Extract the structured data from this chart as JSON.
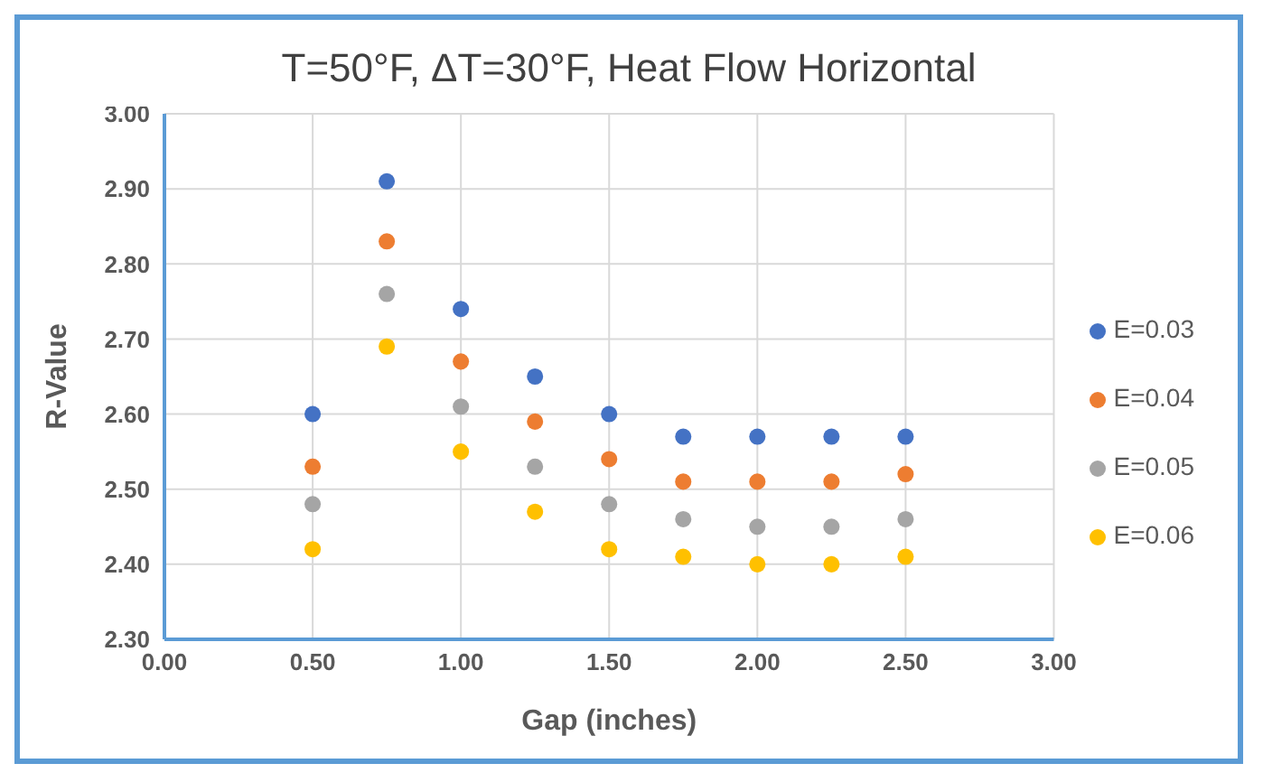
{
  "chart_data": {
    "type": "scatter",
    "title": "T=50°F, ΔT=30°F, Heat Flow Horizontal",
    "xlabel": "Gap (inches)",
    "ylabel": "R-Value",
    "x": [
      0.5,
      0.75,
      1.0,
      1.25,
      1.5,
      1.75,
      2.0,
      2.25,
      2.5
    ],
    "series": [
      {
        "name": "E=0.03",
        "color": "#4472c4",
        "values": [
          2.6,
          2.91,
          2.74,
          2.65,
          2.6,
          2.57,
          2.57,
          2.57,
          2.57
        ]
      },
      {
        "name": "E=0.04",
        "color": "#ed7d31",
        "values": [
          2.53,
          2.83,
          2.67,
          2.59,
          2.54,
          2.51,
          2.51,
          2.51,
          2.52
        ]
      },
      {
        "name": "E=0.05",
        "color": "#a5a5a5",
        "values": [
          2.48,
          2.76,
          2.61,
          2.53,
          2.48,
          2.46,
          2.45,
          2.45,
          2.46
        ]
      },
      {
        "name": "E=0.06",
        "color": "#ffc000",
        "values": [
          2.42,
          2.69,
          2.55,
          2.47,
          2.42,
          2.41,
          2.4,
          2.4,
          2.41
        ]
      }
    ],
    "xlim": [
      0,
      3
    ],
    "xticks": [
      {
        "value": 0,
        "label": "0.00"
      },
      {
        "value": 0.5,
        "label": "0.50"
      },
      {
        "value": 1,
        "label": "1.00"
      },
      {
        "value": 1.5,
        "label": "1.50"
      },
      {
        "value": 2,
        "label": "2.00"
      },
      {
        "value": 2.5,
        "label": "2.50"
      },
      {
        "value": 3,
        "label": "3.00"
      }
    ],
    "ylim": [
      2.3,
      3.0
    ],
    "yticks": [
      {
        "value": 2.3,
        "label": "2.30"
      },
      {
        "value": 2.4,
        "label": "2.40"
      },
      {
        "value": 2.5,
        "label": "2.50"
      },
      {
        "value": 2.6,
        "label": "2.60"
      },
      {
        "value": 2.7,
        "label": "2.70"
      },
      {
        "value": 2.8,
        "label": "2.80"
      },
      {
        "value": 2.9,
        "label": "2.90"
      },
      {
        "value": 3.0,
        "label": "3.00"
      }
    ],
    "grid": true,
    "legend": "right",
    "marker": "circle"
  }
}
